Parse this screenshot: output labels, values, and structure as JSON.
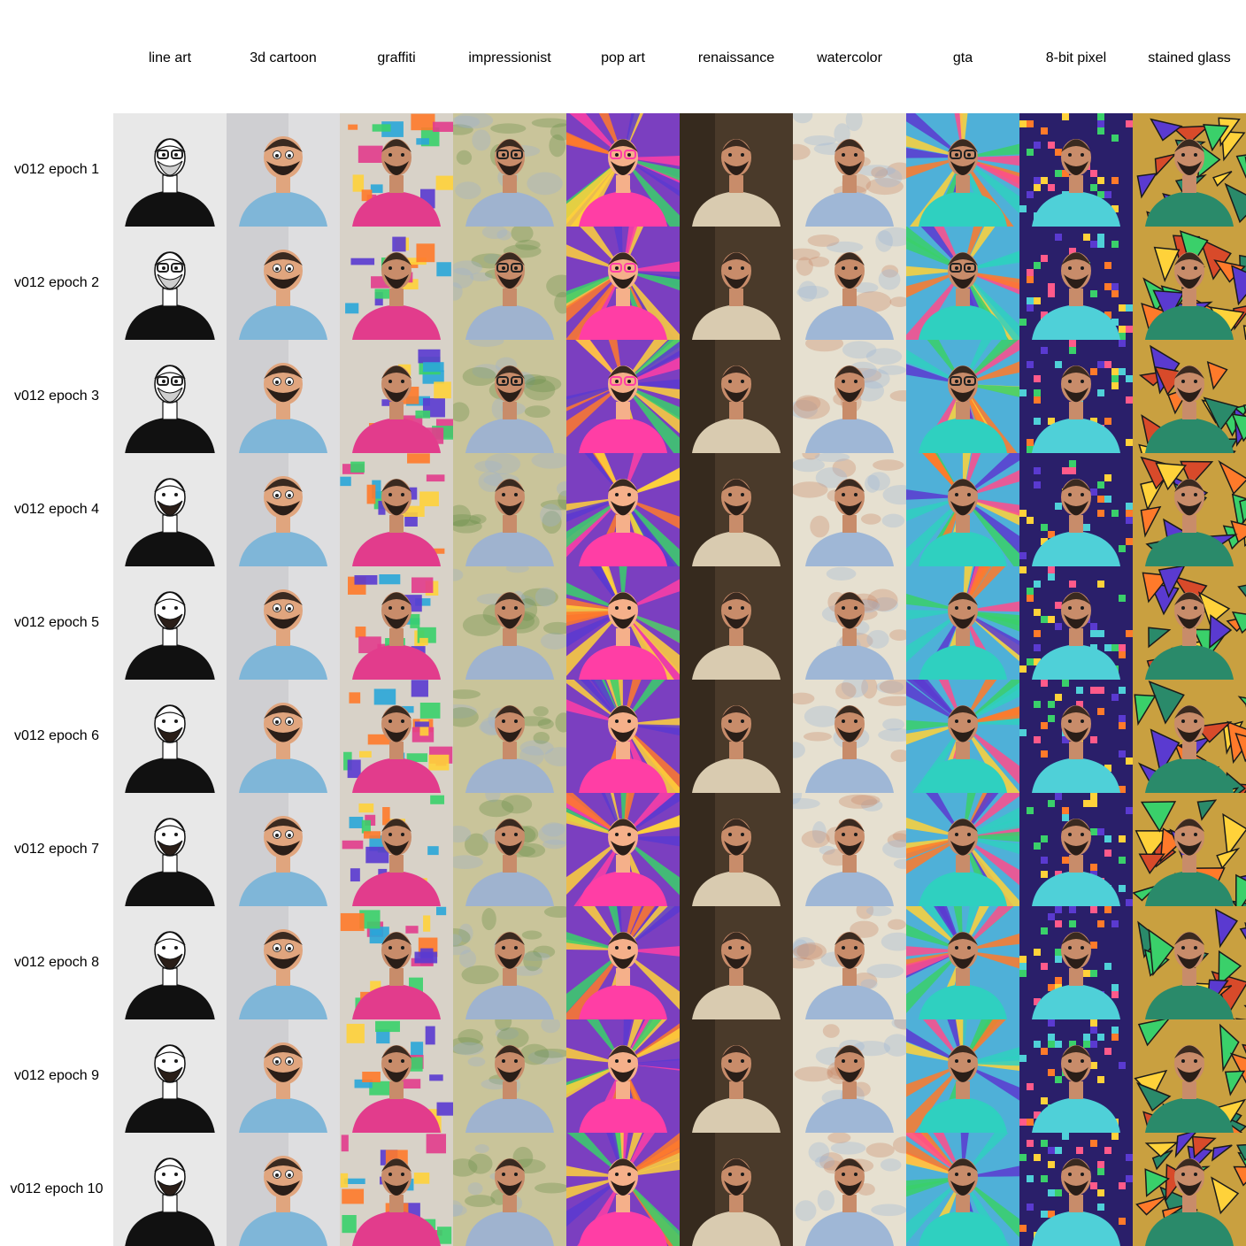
{
  "columns": [
    {
      "label": "line art",
      "style": "lineart",
      "bg": "#e8e8e8",
      "accent": "#111111",
      "alt": "#ffffff"
    },
    {
      "label": "3d cartoon",
      "style": "cartoon",
      "bg": "#cfcfd2",
      "accent": "#7fb6d8",
      "alt": "#d9a27a"
    },
    {
      "label": "graffiti",
      "style": "graffiti",
      "bg": "#d8d2c8",
      "accent": "#e23c8c",
      "alt": "#2aa6d8"
    },
    {
      "label": "impressionist",
      "style": "impressionist",
      "bg": "#c9c49a",
      "accent": "#9fb3cf",
      "alt": "#6b8f4a"
    },
    {
      "label": "pop art",
      "style": "popart",
      "bg": "#7b3fc0",
      "accent": "#ff3ea5",
      "alt": "#ffd23a"
    },
    {
      "label": "renaissance",
      "style": "renaissance",
      "bg": "#4a3a2a",
      "accent": "#d9cbb0",
      "alt": "#2a2018"
    },
    {
      "label": "watercolor",
      "style": "watercolor",
      "bg": "#e6e0d0",
      "accent": "#9fb7d6",
      "alt": "#c98a6a"
    },
    {
      "label": "gta",
      "style": "gta",
      "bg": "#4fb0d8",
      "accent": "#2fd0c0",
      "alt": "#ff4c8c"
    },
    {
      "label": "8-bit pixel",
      "style": "pixel",
      "bg": "#2a1f6a",
      "accent": "#4fd0d8",
      "alt": "#ff5a8a"
    },
    {
      "label": "stained glass",
      "style": "stainedglass",
      "bg": "#c9a040",
      "accent": "#2a8a6a",
      "alt": "#d84a2a"
    }
  ],
  "rows": [
    {
      "label": "v012 epoch 1"
    },
    {
      "label": "v012 epoch 2"
    },
    {
      "label": "v012 epoch 3"
    },
    {
      "label": "v012 epoch 4"
    },
    {
      "label": "v012 epoch 5"
    },
    {
      "label": "v012 epoch 6"
    },
    {
      "label": "v012 epoch 7"
    },
    {
      "label": "v012 epoch 8"
    },
    {
      "label": "v012 epoch 9"
    },
    {
      "label": "v012 epoch 10"
    }
  ]
}
